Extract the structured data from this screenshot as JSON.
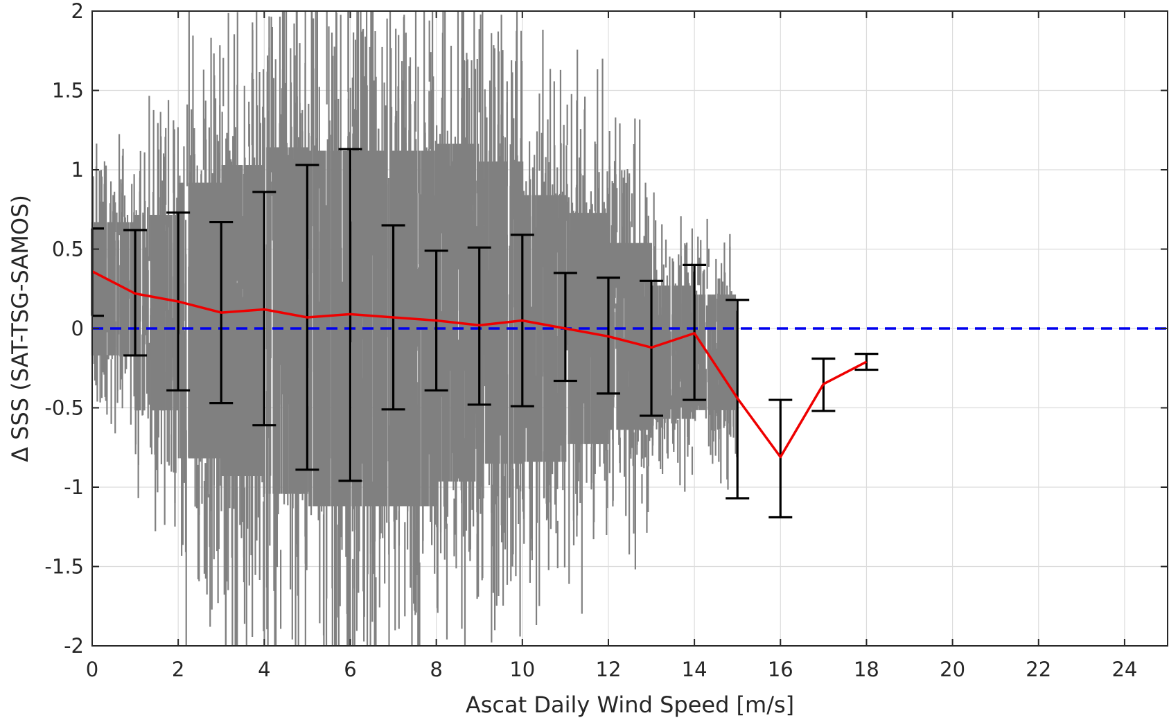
{
  "chart_data": {
    "type": "scatter",
    "xlabel": "Ascat Daily Wind Speed [m/s]",
    "ylabel": "Δ SSS (SAT-TSG-SAMOS)",
    "xlim": [
      0,
      25
    ],
    "ylim": [
      -2,
      2
    ],
    "xticks": [
      0,
      2,
      4,
      6,
      8,
      10,
      12,
      14,
      16,
      18,
      20,
      22,
      24
    ],
    "yticks": [
      2,
      1.5,
      1,
      0.5,
      0,
      -0.5,
      -1,
      -1.5,
      -2
    ],
    "ytick_labels": [
      "2",
      "1.5",
      "1",
      "0.5",
      "0",
      "-0.5",
      "-1",
      "-1.5",
      "-2"
    ],
    "grid": true,
    "scatter": {
      "color": "#808080",
      "description_bins": [
        {
          "x": 0.5,
          "low": -0.5,
          "high": 1.0
        },
        {
          "x": 1.5,
          "low": -1.0,
          "high": 1.2
        },
        {
          "x": 2.5,
          "low": -1.5,
          "high": 1.6
        },
        {
          "x": 3.5,
          "low": -1.7,
          "high": 1.8
        },
        {
          "x": 4.5,
          "low": -1.9,
          "high": 2.0
        },
        {
          "x": 5.5,
          "low": -2.0,
          "high": 2.0
        },
        {
          "x": 6.5,
          "low": -2.0,
          "high": 2.0
        },
        {
          "x": 7.5,
          "low": -2.0,
          "high": 2.0
        },
        {
          "x": 8.5,
          "low": -1.8,
          "high": 2.0
        },
        {
          "x": 9.5,
          "low": -1.6,
          "high": 1.8
        },
        {
          "x": 10.5,
          "low": -1.5,
          "high": 1.5
        },
        {
          "x": 11.5,
          "low": -1.3,
          "high": 1.3
        },
        {
          "x": 12.5,
          "low": -1.1,
          "high": 1.0
        },
        {
          "x": 13.5,
          "low": -0.9,
          "high": 0.6
        },
        {
          "x": 14.5,
          "low": -0.8,
          "high": 0.5
        }
      ]
    },
    "zero_line": {
      "y": 0,
      "color": "#0000ee",
      "style": "dashed"
    },
    "mean_line": {
      "color": "#ee0000",
      "x": [
        0,
        1,
        2,
        3,
        4,
        5,
        6,
        7,
        8,
        9,
        10,
        11,
        12,
        13,
        14,
        15,
        16,
        17,
        18
      ],
      "y": [
        0.36,
        0.22,
        0.17,
        0.1,
        0.12,
        0.07,
        0.09,
        0.07,
        0.05,
        0.02,
        0.05,
        0.0,
        -0.05,
        -0.12,
        -0.03,
        -0.44,
        -0.81,
        -0.35,
        -0.21
      ]
    },
    "error_bars": {
      "color": "#000000",
      "x": [
        0,
        1,
        2,
        3,
        4,
        5,
        6,
        7,
        8,
        9,
        10,
        11,
        12,
        13,
        14,
        15,
        16,
        17,
        18
      ],
      "low": [
        0.08,
        -0.17,
        -0.39,
        -0.47,
        -0.61,
        -0.89,
        -0.96,
        -0.51,
        -0.39,
        -0.48,
        -0.49,
        -0.33,
        -0.41,
        -0.55,
        -0.45,
        -1.07,
        -1.19,
        -0.52,
        -0.26
      ],
      "high": [
        0.63,
        0.62,
        0.73,
        0.67,
        0.86,
        1.03,
        1.13,
        0.65,
        0.49,
        0.51,
        0.59,
        0.35,
        0.32,
        0.3,
        0.4,
        0.18,
        -0.45,
        -0.19,
        -0.16
      ]
    }
  }
}
